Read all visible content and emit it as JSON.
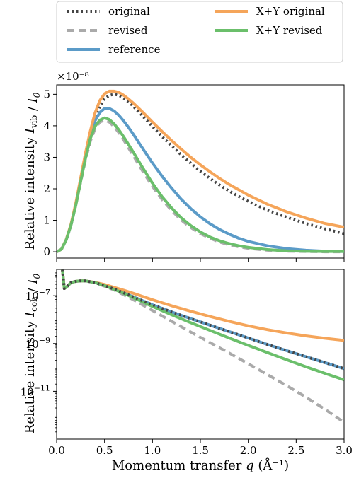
{
  "chart_data": [
    {
      "type": "line",
      "ylabel": "Relative intensity I_vib / I_0",
      "y_scale_note": "×10⁻⁸",
      "xlim": [
        0,
        3.0
      ],
      "ylim": [
        -0.2,
        5.3
      ],
      "yticks": [
        0,
        1,
        2,
        3,
        4,
        5
      ],
      "grid": false,
      "x": [
        0.0,
        0.05,
        0.1,
        0.15,
        0.2,
        0.25,
        0.3,
        0.35,
        0.4,
        0.45,
        0.5,
        0.55,
        0.6,
        0.65,
        0.7,
        0.75,
        0.8,
        0.9,
        1.0,
        1.1,
        1.2,
        1.3,
        1.4,
        1.5,
        1.6,
        1.7,
        1.8,
        1.9,
        2.0,
        2.2,
        2.4,
        2.6,
        2.8,
        3.0
      ],
      "series": [
        {
          "name": "original",
          "color": "#444444",
          "dash": "dotted",
          "values": [
            0.0,
            0.08,
            0.38,
            0.85,
            1.5,
            2.25,
            3.0,
            3.65,
            4.2,
            4.6,
            4.85,
            4.97,
            5.0,
            4.97,
            4.88,
            4.76,
            4.62,
            4.3,
            3.98,
            3.66,
            3.36,
            3.08,
            2.81,
            2.56,
            2.33,
            2.12,
            1.93,
            1.76,
            1.6,
            1.32,
            1.1,
            0.9,
            0.73,
            0.58
          ]
        },
        {
          "name": "revised",
          "color": "#aaaaaa",
          "dash": "dashed",
          "values": [
            0.0,
            0.08,
            0.38,
            0.85,
            1.48,
            2.2,
            2.9,
            3.5,
            3.9,
            4.12,
            4.18,
            4.12,
            3.97,
            3.78,
            3.55,
            3.3,
            3.05,
            2.55,
            2.08,
            1.66,
            1.31,
            1.01,
            0.77,
            0.58,
            0.43,
            0.31,
            0.22,
            0.16,
            0.11,
            0.05,
            0.02,
            0.01,
            0.0,
            0.0
          ]
        },
        {
          "name": "reference",
          "color": "#5b9bc8",
          "dash": "solid",
          "values": [
            0.0,
            0.08,
            0.38,
            0.86,
            1.5,
            2.25,
            3.0,
            3.7,
            4.15,
            4.42,
            4.55,
            4.55,
            4.47,
            4.33,
            4.15,
            3.95,
            3.73,
            3.27,
            2.82,
            2.4,
            2.02,
            1.67,
            1.37,
            1.11,
            0.89,
            0.71,
            0.56,
            0.43,
            0.33,
            0.19,
            0.1,
            0.05,
            0.02,
            0.01
          ]
        },
        {
          "name": "X+Y original",
          "color": "#f5a55a",
          "dash": "solid",
          "values": [
            0.0,
            0.08,
            0.39,
            0.88,
            1.55,
            2.33,
            3.12,
            3.82,
            4.4,
            4.8,
            5.02,
            5.1,
            5.1,
            5.06,
            4.97,
            4.85,
            4.72,
            4.43,
            4.12,
            3.82,
            3.53,
            3.26,
            3.0,
            2.76,
            2.54,
            2.33,
            2.14,
            1.97,
            1.8,
            1.51,
            1.27,
            1.07,
            0.9,
            0.78
          ]
        },
        {
          "name": "X+Y revised",
          "color": "#6bbf6b",
          "dash": "solid",
          "values": [
            0.0,
            0.08,
            0.38,
            0.85,
            1.48,
            2.22,
            2.95,
            3.58,
            3.98,
            4.18,
            4.25,
            4.2,
            4.06,
            3.87,
            3.65,
            3.41,
            3.16,
            2.66,
            2.18,
            1.75,
            1.39,
            1.08,
            0.83,
            0.63,
            0.47,
            0.35,
            0.26,
            0.19,
            0.14,
            0.07,
            0.03,
            0.015,
            0.01,
            0.01
          ]
        }
      ]
    },
    {
      "type": "line",
      "ylabel": "Relative intensity I_coh / I_0",
      "xlabel": "Momentum transfer q (Å⁻¹)",
      "yscale": "log",
      "xlim": [
        0,
        3.0
      ],
      "ylim_log10": [
        -13.0,
        -5.9
      ],
      "yticks_log10": [
        -11,
        -9,
        -7
      ],
      "ytick_labels": [
        "10",
        "10",
        "10"
      ],
      "ytick_exponents": [
        "−11",
        "−9",
        "−7"
      ],
      "xticks": [
        0.0,
        0.5,
        1.0,
        1.5,
        2.0,
        2.5,
        3.0
      ],
      "xtick_labels": [
        "0.0",
        "0.5",
        "1.0",
        "1.5",
        "2.0",
        "2.5",
        "3.0"
      ],
      "grid": false,
      "x": [
        0.06,
        0.07,
        0.08,
        0.1,
        0.15,
        0.2,
        0.25,
        0.3,
        0.4,
        0.5,
        0.6,
        0.7,
        0.8,
        1.0,
        1.2,
        1.4,
        1.6,
        1.8,
        2.0,
        2.2,
        2.4,
        2.6,
        2.8,
        3.0
      ],
      "series": [
        {
          "name": "original",
          "color": "#444444",
          "dash": "dotted",
          "values_log10": [
            -5.9,
            -6.3,
            -6.7,
            -6.65,
            -6.45,
            -6.4,
            -6.38,
            -6.38,
            -6.45,
            -6.58,
            -6.72,
            -6.88,
            -7.05,
            -7.38,
            -7.68,
            -7.96,
            -8.23,
            -8.5,
            -8.77,
            -9.04,
            -9.3,
            -9.55,
            -9.8,
            -10.05
          ]
        },
        {
          "name": "revised",
          "color": "#aaaaaa",
          "dash": "dashed",
          "values_log10": [
            -5.9,
            -6.3,
            -6.7,
            -6.65,
            -6.45,
            -6.4,
            -6.38,
            -6.38,
            -6.46,
            -6.6,
            -6.76,
            -6.96,
            -7.17,
            -7.62,
            -8.07,
            -8.52,
            -8.96,
            -9.4,
            -9.85,
            -10.3,
            -10.76,
            -11.24,
            -11.75,
            -12.3
          ]
        },
        {
          "name": "reference",
          "color": "#5b9bc8",
          "dash": "solid",
          "values_log10": [
            -5.9,
            -6.3,
            -6.7,
            -6.65,
            -6.45,
            -6.4,
            -6.38,
            -6.38,
            -6.45,
            -6.58,
            -6.72,
            -6.88,
            -7.05,
            -7.38,
            -7.68,
            -7.96,
            -8.23,
            -8.5,
            -8.77,
            -9.04,
            -9.3,
            -9.55,
            -9.8,
            -10.05
          ]
        },
        {
          "name": "X+Y original",
          "color": "#f5a55a",
          "dash": "solid",
          "values_log10": [
            -5.9,
            -6.3,
            -6.7,
            -6.65,
            -6.45,
            -6.4,
            -6.38,
            -6.38,
            -6.44,
            -6.53,
            -6.65,
            -6.77,
            -6.9,
            -7.17,
            -7.42,
            -7.65,
            -7.87,
            -8.07,
            -8.26,
            -8.42,
            -8.56,
            -8.68,
            -8.78,
            -8.87
          ]
        },
        {
          "name": "X+Y revised",
          "color": "#6bbf6b",
          "dash": "solid",
          "values_log10": [
            -5.9,
            -6.3,
            -6.7,
            -6.65,
            -6.45,
            -6.4,
            -6.38,
            -6.38,
            -6.45,
            -6.58,
            -6.73,
            -6.9,
            -7.08,
            -7.45,
            -7.8,
            -8.13,
            -8.45,
            -8.77,
            -9.08,
            -9.38,
            -9.68,
            -9.97,
            -10.25,
            -10.52
          ]
        }
      ]
    }
  ],
  "legend": {
    "placement": "top",
    "entries": [
      {
        "label": "original",
        "color": "#444444",
        "dash": "dotted"
      },
      {
        "label": "revised",
        "color": "#aaaaaa",
        "dash": "dashed"
      },
      {
        "label": "reference",
        "color": "#5b9bc8",
        "dash": "solid"
      },
      {
        "label": "X+Y original",
        "color": "#f5a55a",
        "dash": "solid"
      },
      {
        "label": "X+Y revised",
        "color": "#6bbf6b",
        "dash": "solid"
      }
    ]
  }
}
